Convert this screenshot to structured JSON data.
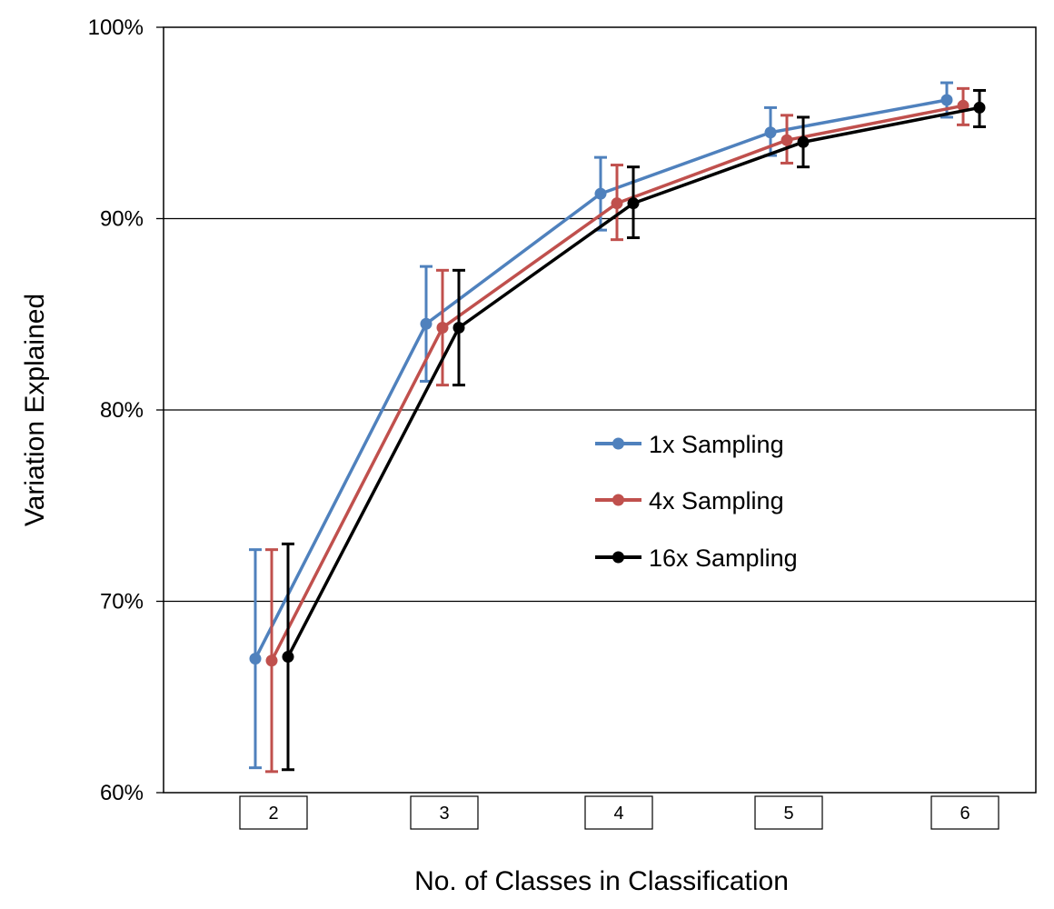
{
  "chart_data": {
    "type": "line",
    "title": "",
    "xlabel": "No. of Classes in Classification",
    "ylabel": "Variation Explained",
    "categories": [
      "2",
      "3",
      "4",
      "5",
      "6"
    ],
    "y_tick_labels": [
      "60%",
      "70%",
      "80%",
      "90%",
      "100%"
    ],
    "ylim": [
      60,
      100
    ],
    "y_ticks": [
      60,
      70,
      80,
      90,
      100
    ],
    "grid": true,
    "legend_position": "center-right",
    "series": [
      {
        "name": "1x Sampling",
        "color": "#4F81BD",
        "values": [
          67.0,
          84.5,
          91.3,
          94.5,
          96.2
        ],
        "error_low": [
          61.3,
          81.5,
          89.4,
          93.3,
          95.3
        ],
        "error_high": [
          72.7,
          87.5,
          93.2,
          95.8,
          97.1
        ]
      },
      {
        "name": "4x Sampling",
        "color": "#C0504D",
        "values": [
          66.9,
          84.3,
          90.8,
          94.1,
          95.9
        ],
        "error_low": [
          61.1,
          81.3,
          88.9,
          92.9,
          94.9
        ],
        "error_high": [
          72.7,
          87.3,
          92.8,
          95.4,
          96.8
        ]
      },
      {
        "name": "16x Sampling",
        "color": "#000000",
        "values": [
          67.1,
          84.3,
          90.8,
          94.0,
          95.8
        ],
        "error_low": [
          61.2,
          81.3,
          89.0,
          92.7,
          94.8
        ],
        "error_high": [
          73.0,
          87.3,
          92.7,
          95.3,
          96.7
        ]
      }
    ]
  }
}
